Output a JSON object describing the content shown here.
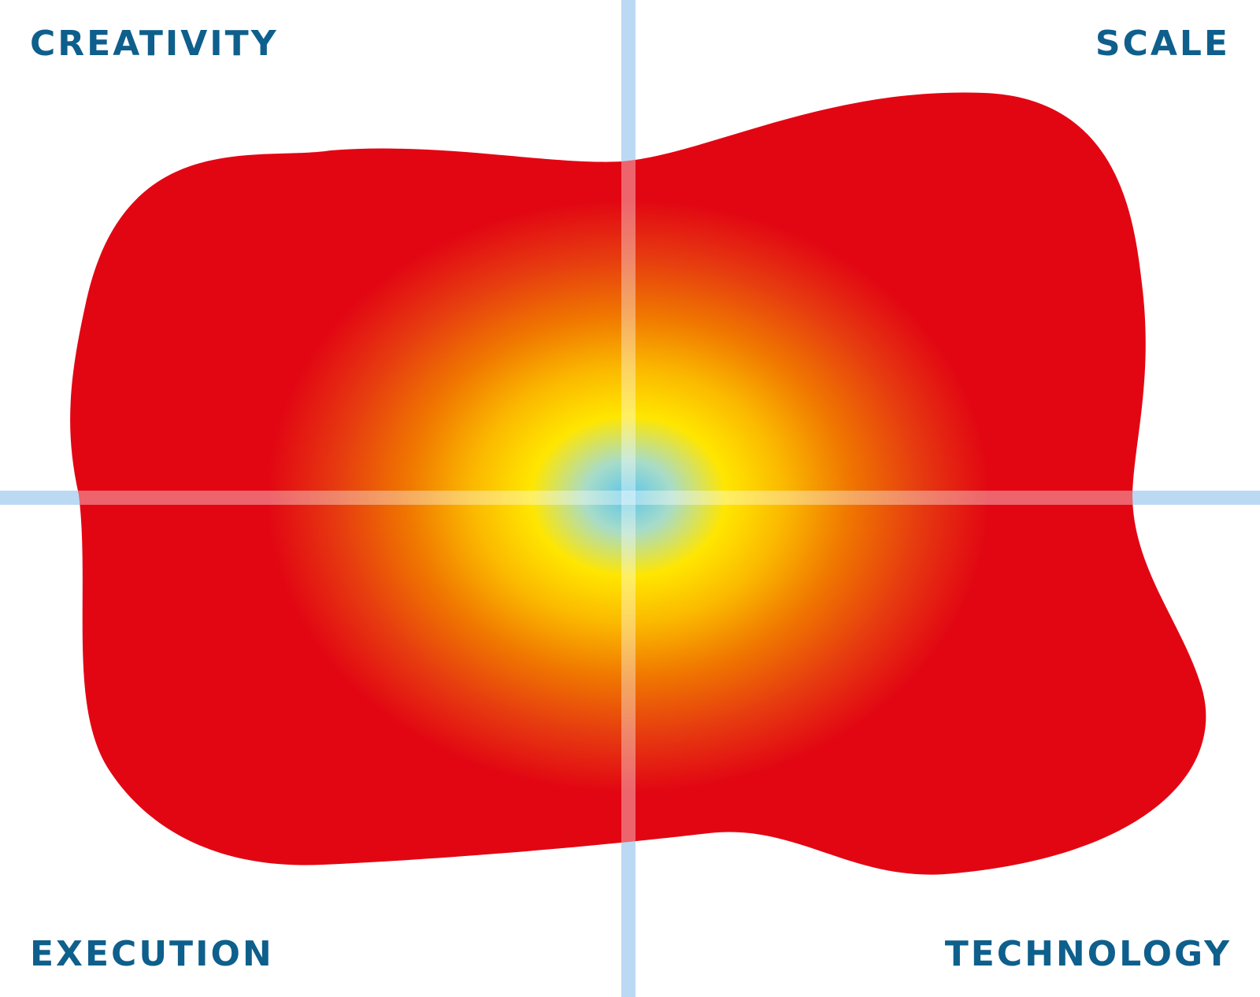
{
  "quadrant_labels": {
    "top_left": "CREATIVITY",
    "top_right": "SCALE",
    "bottom_left": "EXECUTION",
    "bottom_right": "TECHNOLOGY"
  },
  "colors": {
    "label_text": "#0e5f8c",
    "axis_line": "#bcd9f3",
    "blob_outer": "#e20613",
    "blob_mid": "#f07800",
    "blob_yellow": "#ffe600",
    "blob_center": "#5bc5ea",
    "background": "#ffffff"
  }
}
